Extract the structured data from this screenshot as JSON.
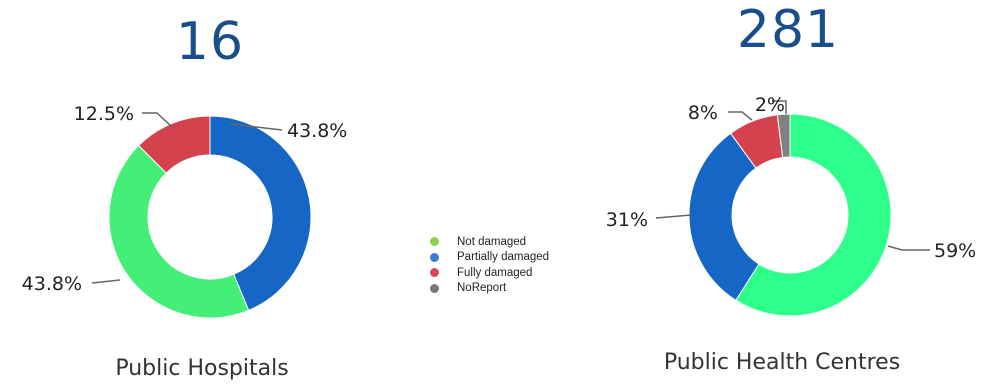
{
  "chart_data": [
    {
      "type": "pie",
      "title": "Public Hospitals",
      "total_label": "16",
      "categories": [
        "Not damaged",
        "Partially damaged",
        "Fully damaged",
        "NoReport"
      ],
      "values": [
        43.8,
        43.8,
        12.5,
        0
      ],
      "data_labels": [
        "43.8%",
        "43.8%",
        "12.5%",
        ""
      ]
    },
    {
      "type": "pie",
      "title": "Public Health Centres",
      "total_label": "281",
      "categories": [
        "Not damaged",
        "Partially damaged",
        "Fully damaged",
        "NoReport"
      ],
      "values": [
        59,
        31,
        8,
        2
      ],
      "data_labels": [
        "59%",
        "31%",
        "8%",
        "2%"
      ]
    }
  ],
  "legend": {
    "placement": "center",
    "items": [
      {
        "label": "Not damaged",
        "color": "#8ed14b"
      },
      {
        "label": "Partially damaged",
        "color": "#3b7dd8"
      },
      {
        "label": "Fully damaged",
        "color": "#d6474f"
      },
      {
        "label": "NoReport",
        "color": "#777777"
      }
    ]
  },
  "slice_colors": {
    "hospitals": [
      "#44ee77",
      "#1666c5",
      "#d4424d",
      "#808080"
    ],
    "centres": [
      "#2eff8a",
      "#1666c5",
      "#d4424d",
      "#808080"
    ]
  }
}
